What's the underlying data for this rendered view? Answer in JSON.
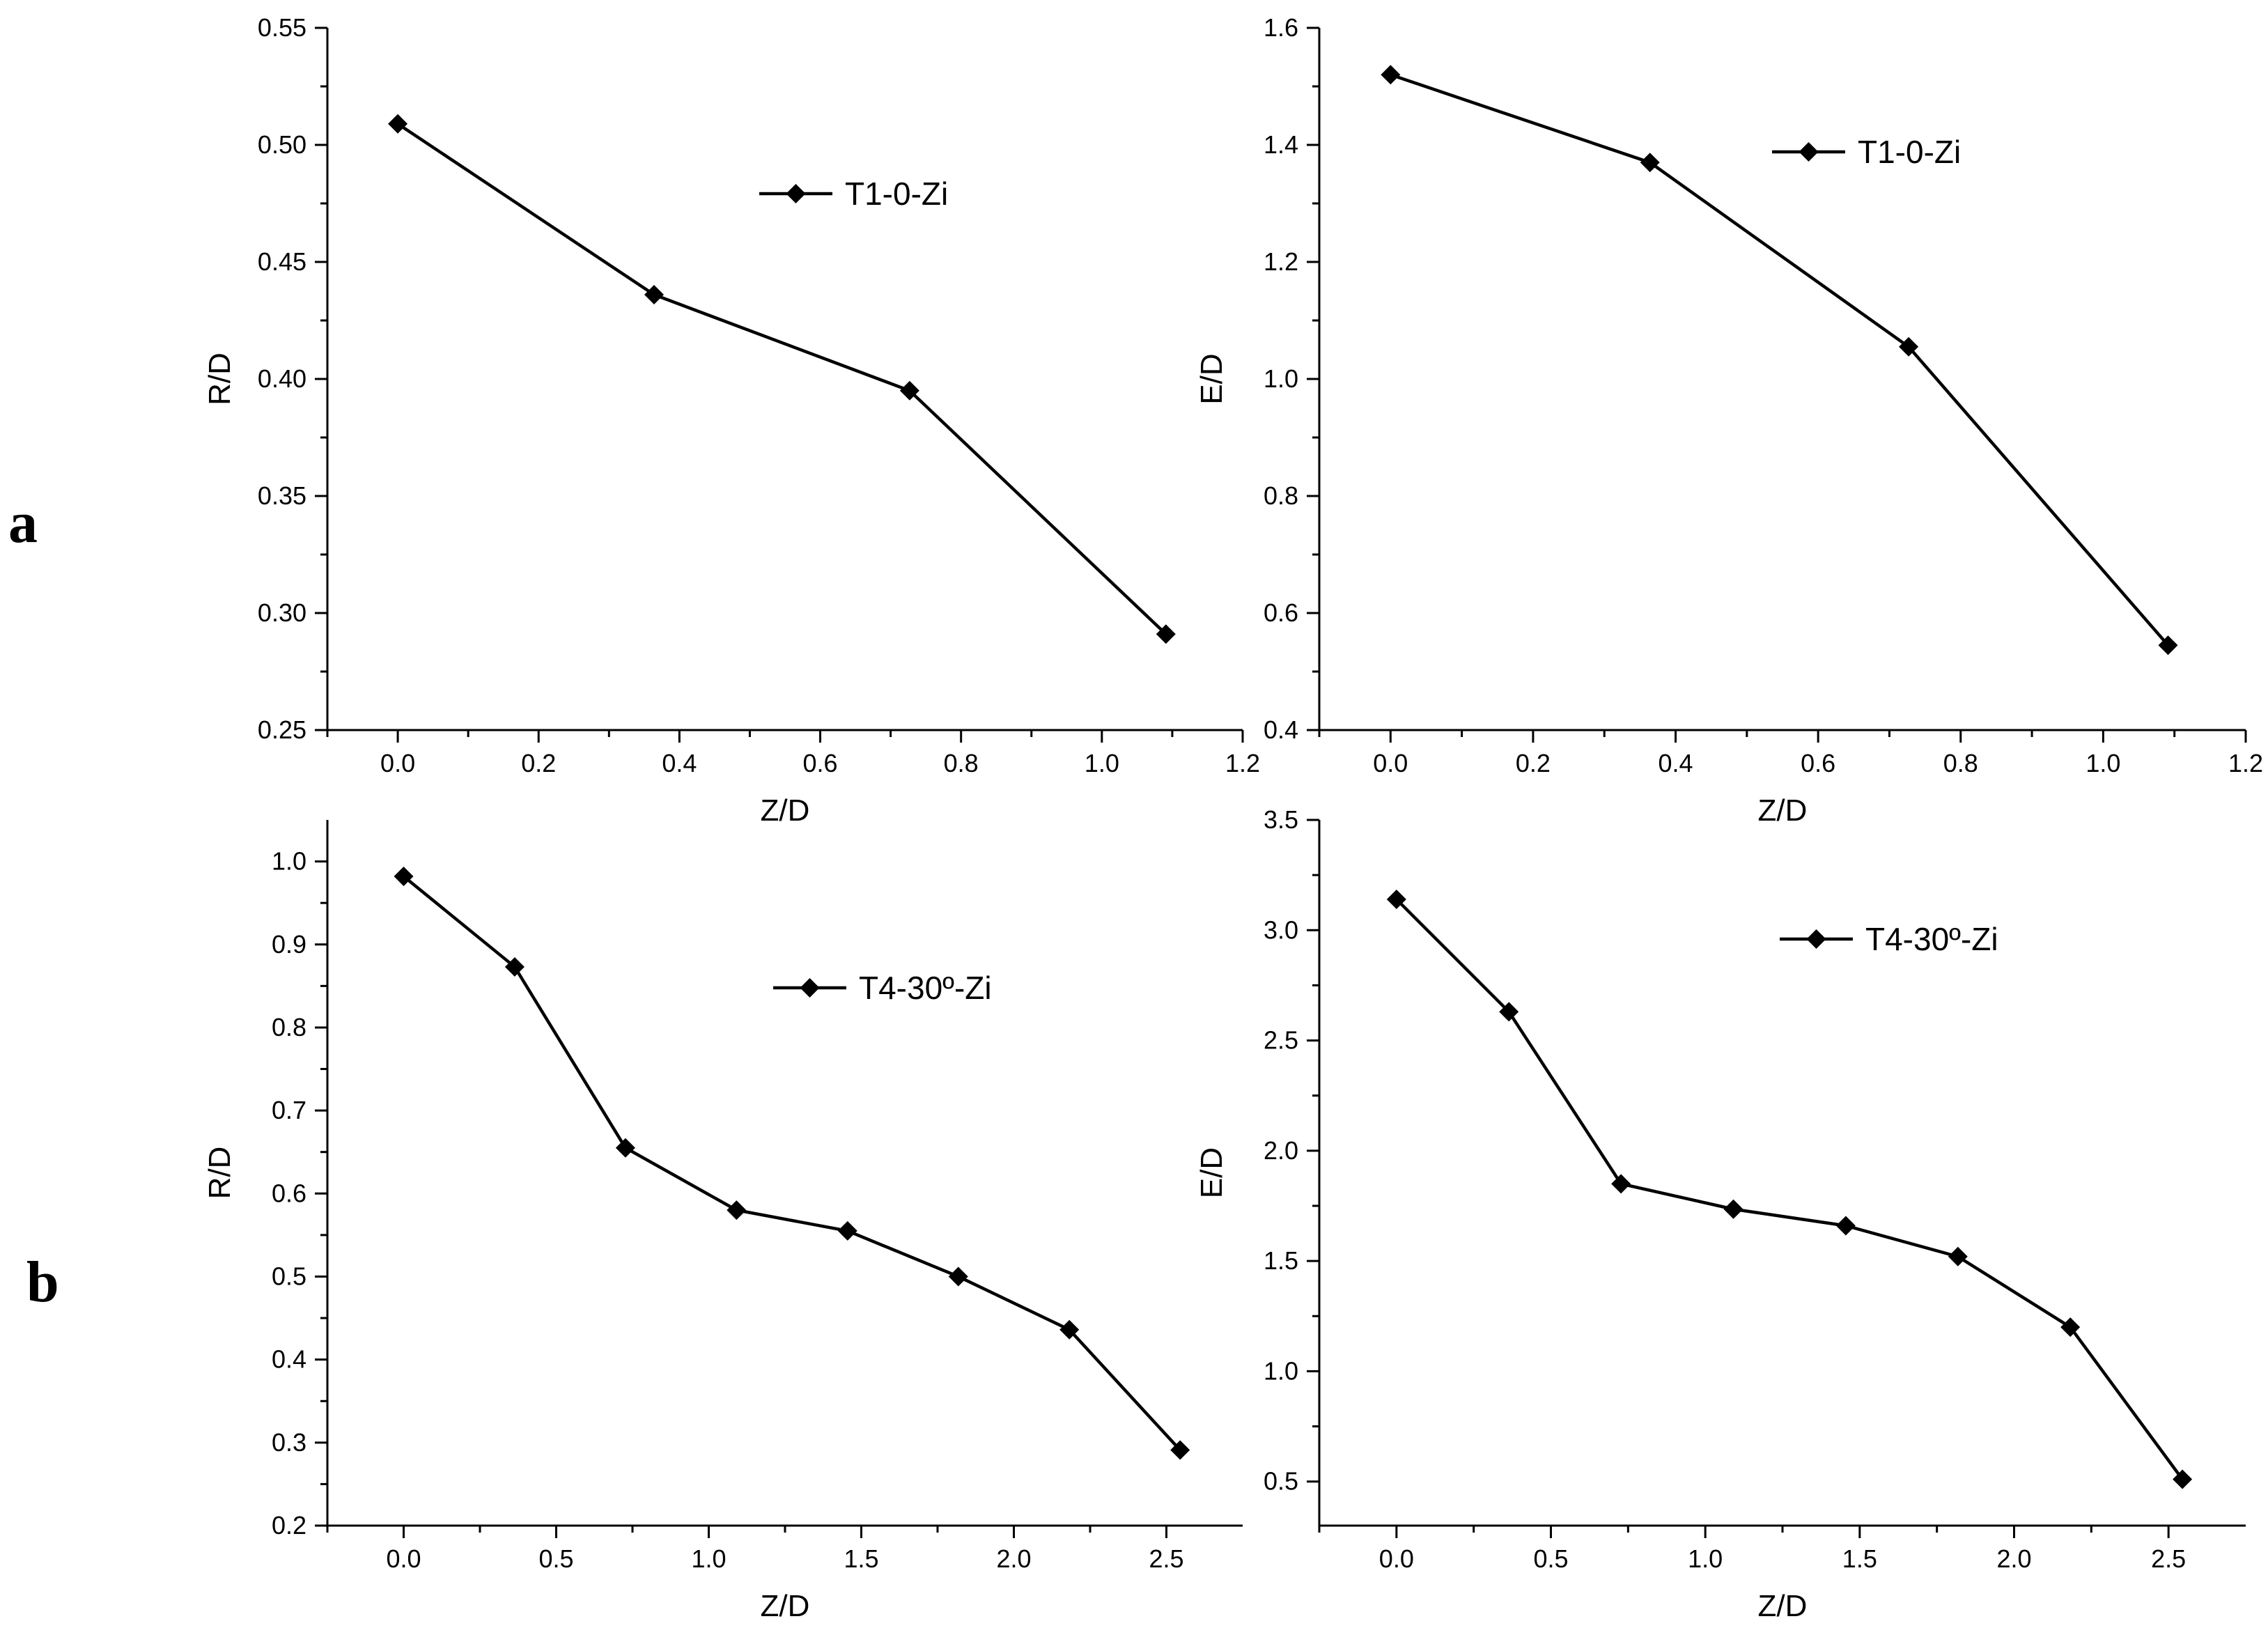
{
  "panel_labels": [
    "a",
    "b"
  ],
  "chart_data": [
    {
      "type": "line",
      "xlabel": "Z/D",
      "ylabel": "R/D",
      "xlim": [
        -0.1,
        1.2
      ],
      "ylim": [
        0.25,
        0.55
      ],
      "xticks": [
        0.0,
        0.2,
        0.4,
        0.6,
        0.8,
        1.0,
        1.2
      ],
      "xtick_labels": [
        "0.0",
        "0.2",
        "0.4",
        "0.6",
        "0.8",
        "1.0",
        "1.2"
      ],
      "yticks": [
        0.25,
        0.3,
        0.35,
        0.4,
        0.45,
        0.5,
        0.55
      ],
      "ytick_labels": [
        "0.25",
        "0.30",
        "0.35",
        "0.40",
        "0.45",
        "0.50",
        "0.55"
      ],
      "legend_position": "upper-middle",
      "series": [
        {
          "name": "T1-0-Zi",
          "marker": "diamond",
          "color": "#000000",
          "x": [
            0.0,
            0.364,
            0.727,
            1.091
          ],
          "y": [
            0.509,
            0.436,
            0.395,
            0.291
          ]
        }
      ]
    },
    {
      "type": "line",
      "xlabel": "Z/D",
      "ylabel": "E/D",
      "xlim": [
        -0.1,
        1.2
      ],
      "ylim": [
        0.4,
        1.6
      ],
      "xticks": [
        0.0,
        0.2,
        0.4,
        0.6,
        0.8,
        1.0,
        1.2
      ],
      "xtick_labels": [
        "0.0",
        "0.2",
        "0.4",
        "0.6",
        "0.8",
        "1.0",
        "1.2"
      ],
      "yticks": [
        0.4,
        0.6,
        0.8,
        1.0,
        1.2,
        1.4,
        1.6
      ],
      "ytick_labels": [
        "0.4",
        "0.6",
        "0.8",
        "1.0",
        "1.2",
        "1.4",
        "1.6"
      ],
      "legend_position": "top-right",
      "series": [
        {
          "name": "T1-0-Zi",
          "marker": "diamond",
          "color": "#000000",
          "x": [
            0.0,
            0.364,
            0.727,
            1.091
          ],
          "y": [
            1.52,
            1.37,
            1.055,
            0.545
          ]
        }
      ]
    },
    {
      "type": "line",
      "xlabel": "Z/D",
      "ylabel": "R/D",
      "xlim": [
        -0.25,
        2.75
      ],
      "ylim": [
        0.2,
        1.05
      ],
      "xticks": [
        0.0,
        0.5,
        1.0,
        1.5,
        2.0,
        2.5
      ],
      "xtick_labels": [
        "0.0",
        "0.5",
        "1.0",
        "1.5",
        "2.0",
        "2.5"
      ],
      "yticks": [
        0.2,
        0.3,
        0.4,
        0.5,
        0.6,
        0.7,
        0.8,
        0.9,
        1.0
      ],
      "ytick_labels": [
        "0.2",
        "0.3",
        "0.4",
        "0.5",
        "0.6",
        "0.7",
        "0.8",
        "0.9",
        "1.0"
      ],
      "legend_position": "middle-right",
      "series": [
        {
          "name": "T4-30º-Zi",
          "marker": "diamond",
          "color": "#000000",
          "x": [
            0.0,
            0.364,
            0.727,
            1.091,
            1.455,
            1.818,
            2.182,
            2.545
          ],
          "y": [
            0.982,
            0.873,
            0.655,
            0.58,
            0.555,
            0.5,
            0.436,
            0.291
          ]
        }
      ]
    },
    {
      "type": "line",
      "xlabel": "Z/D",
      "ylabel": "E/D",
      "xlim": [
        -0.25,
        2.75
      ],
      "ylim": [
        0.3,
        3.5
      ],
      "xticks": [
        0.0,
        0.5,
        1.0,
        1.5,
        2.0,
        2.5
      ],
      "xtick_labels": [
        "0.0",
        "0.5",
        "1.0",
        "1.5",
        "2.0",
        "2.5"
      ],
      "yticks": [
        0.5,
        1.0,
        1.5,
        2.0,
        2.5,
        3.0,
        3.5
      ],
      "ytick_labels": [
        "0.5",
        "1.0",
        "1.5",
        "2.0",
        "2.5",
        "3.0",
        "3.5"
      ],
      "legend_position": "top-right",
      "series": [
        {
          "name": "T4-30º-Zi",
          "marker": "diamond",
          "color": "#000000",
          "x": [
            0.0,
            0.364,
            0.727,
            1.091,
            1.455,
            1.818,
            2.182,
            2.545
          ],
          "y": [
            3.14,
            2.63,
            1.85,
            1.735,
            1.66,
            1.52,
            1.2,
            0.51
          ]
        }
      ]
    }
  ]
}
